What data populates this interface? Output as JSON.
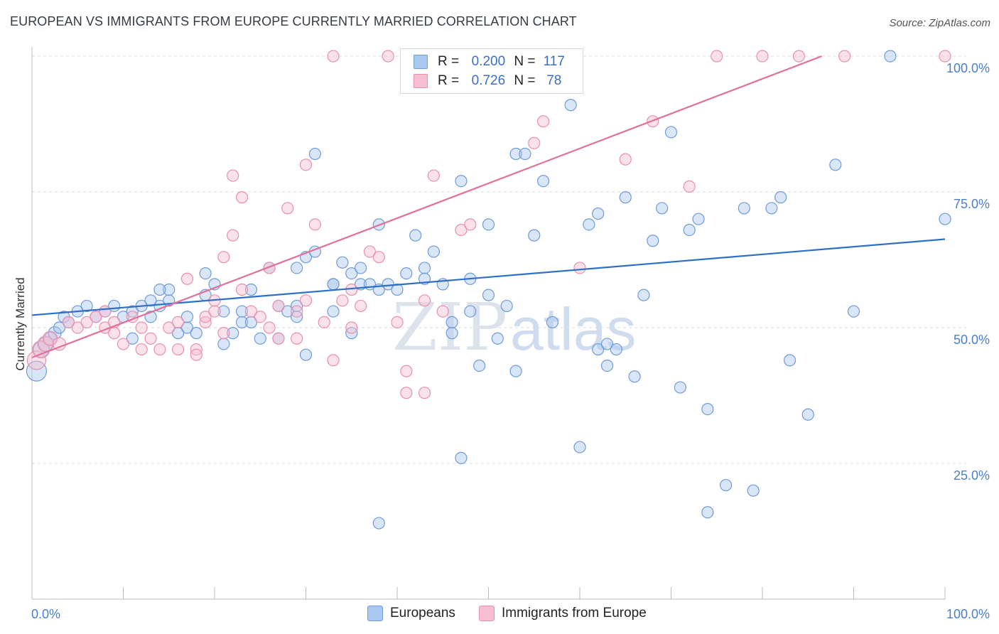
{
  "title": "EUROPEAN VS IMMIGRANTS FROM EUROPE CURRENTLY MARRIED CORRELATION CHART",
  "source": "Source: ZipAtlas.com",
  "watermark": {
    "zip": "ZIP",
    "atlas": "atlas"
  },
  "colors": {
    "blue_fill": "#a9c8f0",
    "blue_stroke": "#6f9bd8",
    "blue_line": "#2e6fca",
    "pink_fill": "#f7bfd1",
    "pink_stroke": "#e98fae",
    "pink_line": "#e0709a",
    "tick_text": "#4a7fc8",
    "grid": "#d9d9d9"
  },
  "legend": {
    "rows": [
      {
        "r_label": "R =",
        "r_value": "0.200",
        "n_label": "N =",
        "n_value": "117",
        "color": "#a9c8f0"
      },
      {
        "r_label": "R =",
        "r_value": "0.726",
        "n_label": "N =",
        "n_value": "78",
        "color": "#f7bfd1"
      }
    ]
  },
  "chart_data": {
    "type": "scatter",
    "title": "EUROPEAN VS IMMIGRANTS FROM EUROPE CURRENTLY MARRIED CORRELATION CHART",
    "xlabel": "",
    "ylabel": "Currently Married",
    "xlim": [
      0,
      100
    ],
    "ylim": [
      0,
      100
    ],
    "x_tick_labels": [
      "0.0%",
      "100.0%"
    ],
    "y_tick_labels": [
      {
        "value": 25,
        "label": "25.0%"
      },
      {
        "value": 50,
        "label": "50.0%"
      },
      {
        "value": 75,
        "label": "75.0%"
      },
      {
        "value": 100,
        "label": "100.0%"
      }
    ],
    "grid": true,
    "legend_position": "bottom",
    "series": [
      {
        "name": "Europeans",
        "r": 0.2,
        "n": 117,
        "trend": {
          "x": [
            0,
            100
          ],
          "y": [
            52.3,
            66.3
          ]
        },
        "points": [
          [
            0.5,
            42,
            14
          ],
          [
            1,
            46,
            11
          ],
          [
            1.5,
            47,
            10
          ],
          [
            2,
            48,
            9
          ],
          [
            2.5,
            49,
            9
          ],
          [
            3,
            50,
            8
          ],
          [
            3.5,
            52,
            8
          ],
          [
            4,
            51,
            8
          ],
          [
            5,
            53,
            8
          ],
          [
            6,
            54,
            8
          ],
          [
            7,
            52,
            8
          ],
          [
            8,
            53,
            8
          ],
          [
            9,
            54,
            8
          ],
          [
            10,
            52,
            8
          ],
          [
            11,
            53,
            8
          ],
          [
            11,
            48,
            8
          ],
          [
            12,
            54,
            8
          ],
          [
            13,
            52,
            8
          ],
          [
            14,
            54,
            8
          ],
          [
            15,
            55,
            8
          ],
          [
            15,
            57,
            8
          ],
          [
            13,
            55,
            8
          ],
          [
            14,
            57,
            8
          ],
          [
            16,
            49,
            8
          ],
          [
            17,
            50,
            8
          ],
          [
            17,
            52,
            8
          ],
          [
            18,
            49,
            8
          ],
          [
            19,
            60,
            8
          ],
          [
            19,
            56,
            8
          ],
          [
            20,
            58,
            8
          ],
          [
            21,
            53,
            8
          ],
          [
            21,
            47,
            8
          ],
          [
            22,
            49,
            8
          ],
          [
            23,
            51,
            8
          ],
          [
            23,
            53,
            8
          ],
          [
            24,
            57,
            8
          ],
          [
            24,
            51,
            8
          ],
          [
            25,
            48,
            8
          ],
          [
            26,
            61,
            8
          ],
          [
            27,
            54,
            8
          ],
          [
            27,
            48,
            8
          ],
          [
            28,
            53,
            8
          ],
          [
            29,
            61,
            8
          ],
          [
            29,
            54,
            8
          ],
          [
            29,
            52,
            8
          ],
          [
            30,
            45,
            8
          ],
          [
            30,
            63,
            8
          ],
          [
            31,
            82,
            8
          ],
          [
            31,
            64,
            8
          ],
          [
            33,
            58,
            8
          ],
          [
            33,
            53,
            8
          ],
          [
            33,
            58,
            8
          ],
          [
            34,
            62,
            8
          ],
          [
            35,
            60,
            8
          ],
          [
            35,
            49,
            8
          ],
          [
            36,
            58,
            8
          ],
          [
            36,
            61,
            8
          ],
          [
            37,
            58,
            8
          ],
          [
            38,
            57,
            8
          ],
          [
            38,
            69,
            8
          ],
          [
            39,
            58,
            8
          ],
          [
            40,
            57,
            8
          ],
          [
            41,
            60,
            8
          ],
          [
            42,
            67,
            8
          ],
          [
            43,
            61,
            8
          ],
          [
            43,
            59,
            8
          ],
          [
            44,
            64,
            8
          ],
          [
            45,
            58,
            8
          ],
          [
            46,
            49,
            8
          ],
          [
            46,
            51,
            8
          ],
          [
            47,
            77,
            8
          ],
          [
            47,
            26,
            8
          ],
          [
            38,
            14,
            8
          ],
          [
            48,
            59,
            8
          ],
          [
            48,
            53,
            8
          ],
          [
            49,
            43,
            8
          ],
          [
            50,
            69,
            8
          ],
          [
            50,
            56,
            8
          ],
          [
            51,
            48,
            8
          ],
          [
            52,
            54,
            8
          ],
          [
            53,
            82,
            8
          ],
          [
            53,
            42,
            8
          ],
          [
            54,
            82,
            8
          ],
          [
            55,
            67,
            8
          ],
          [
            56,
            77,
            8
          ],
          [
            57,
            51,
            8
          ],
          [
            58,
            100,
            8
          ],
          [
            59,
            91,
            8
          ],
          [
            60,
            28,
            8
          ],
          [
            61,
            69,
            8
          ],
          [
            62,
            71,
            8
          ],
          [
            62,
            46,
            8
          ],
          [
            63,
            43,
            8
          ],
          [
            63,
            47,
            8
          ],
          [
            64,
            46,
            8
          ],
          [
            65,
            74,
            8
          ],
          [
            66,
            41,
            8
          ],
          [
            67,
            56,
            8
          ],
          [
            68,
            66,
            8
          ],
          [
            69,
            72,
            8
          ],
          [
            70,
            86,
            8
          ],
          [
            71,
            39,
            8
          ],
          [
            72,
            68,
            8
          ],
          [
            73,
            70,
            8
          ],
          [
            74,
            35,
            8
          ],
          [
            74,
            16,
            8
          ],
          [
            76,
            21,
            8
          ],
          [
            78,
            72,
            8
          ],
          [
            79,
            20,
            8
          ],
          [
            81,
            72,
            8
          ],
          [
            82,
            74,
            8
          ],
          [
            83,
            44,
            8
          ],
          [
            85,
            34,
            8
          ],
          [
            88,
            80,
            8
          ],
          [
            90,
            53,
            8
          ],
          [
            94,
            100,
            8
          ],
          [
            100,
            70,
            8
          ]
        ]
      },
      {
        "name": "Immigrants from Europe",
        "r": 0.726,
        "n": 78,
        "trend": {
          "x": [
            0,
            86.5
          ],
          "y": [
            44.5,
            100
          ]
        },
        "points": [
          [
            0.5,
            44,
            13
          ],
          [
            1,
            46,
            12
          ],
          [
            1.5,
            47,
            11
          ],
          [
            2,
            48,
            10
          ],
          [
            3,
            47,
            9
          ],
          [
            4,
            51,
            8
          ],
          [
            5,
            50,
            8
          ],
          [
            6,
            51,
            8
          ],
          [
            7,
            52,
            8
          ],
          [
            8,
            53,
            8
          ],
          [
            8,
            50,
            8
          ],
          [
            9,
            51,
            8
          ],
          [
            9,
            49,
            8
          ],
          [
            10,
            47,
            8
          ],
          [
            11,
            52,
            8
          ],
          [
            12,
            50,
            8
          ],
          [
            12,
            46,
            8
          ],
          [
            13,
            48,
            8
          ],
          [
            14,
            46,
            8
          ],
          [
            15,
            50,
            8
          ],
          [
            16,
            51,
            8
          ],
          [
            16,
            46,
            8
          ],
          [
            17,
            59,
            8
          ],
          [
            18,
            46,
            8
          ],
          [
            18,
            45,
            8
          ],
          [
            19,
            51,
            8
          ],
          [
            19,
            52,
            8
          ],
          [
            20,
            53,
            8
          ],
          [
            20,
            55,
            8
          ],
          [
            21,
            63,
            8
          ],
          [
            21,
            49,
            8
          ],
          [
            22,
            78,
            8
          ],
          [
            22,
            67,
            8
          ],
          [
            23,
            74,
            8
          ],
          [
            23,
            57,
            8
          ],
          [
            24,
            53,
            8
          ],
          [
            25,
            52,
            8
          ],
          [
            26,
            61,
            8
          ],
          [
            26,
            50,
            8
          ],
          [
            27,
            54,
            8
          ],
          [
            27,
            48,
            8
          ],
          [
            28,
            72,
            8
          ],
          [
            29,
            53,
            8
          ],
          [
            30,
            80,
            8
          ],
          [
            30,
            55,
            8
          ],
          [
            31,
            69,
            8
          ],
          [
            32,
            51,
            8
          ],
          [
            33,
            44,
            8
          ],
          [
            33,
            100,
            8
          ],
          [
            34,
            55,
            8
          ],
          [
            35,
            57,
            8
          ],
          [
            36,
            54,
            8
          ],
          [
            37,
            64,
            8
          ],
          [
            38,
            63,
            8
          ],
          [
            39,
            100,
            8
          ],
          [
            40,
            51,
            8
          ],
          [
            41,
            38,
            8
          ],
          [
            41,
            42,
            8
          ],
          [
            43,
            55,
            8
          ],
          [
            43,
            38,
            8
          ],
          [
            44,
            78,
            8
          ],
          [
            45,
            53,
            8
          ],
          [
            47,
            68,
            8
          ],
          [
            48,
            69,
            8
          ],
          [
            50,
            100,
            8
          ],
          [
            55,
            84,
            8
          ],
          [
            56,
            88,
            8
          ],
          [
            60,
            61,
            8
          ],
          [
            65,
            81,
            8
          ],
          [
            68,
            88,
            8
          ],
          [
            72,
            76,
            8
          ],
          [
            75,
            100,
            8
          ],
          [
            80,
            100,
            8
          ],
          [
            84,
            100,
            8
          ],
          [
            89,
            100,
            8
          ],
          [
            100,
            100,
            8
          ],
          [
            29,
            48,
            8
          ],
          [
            35,
            50,
            8
          ]
        ]
      }
    ]
  },
  "bottom_legend": [
    {
      "label": "Europeans",
      "color": "#a9c8f0"
    },
    {
      "label": "Immigrants from Europe",
      "color": "#f7bfd1"
    }
  ]
}
